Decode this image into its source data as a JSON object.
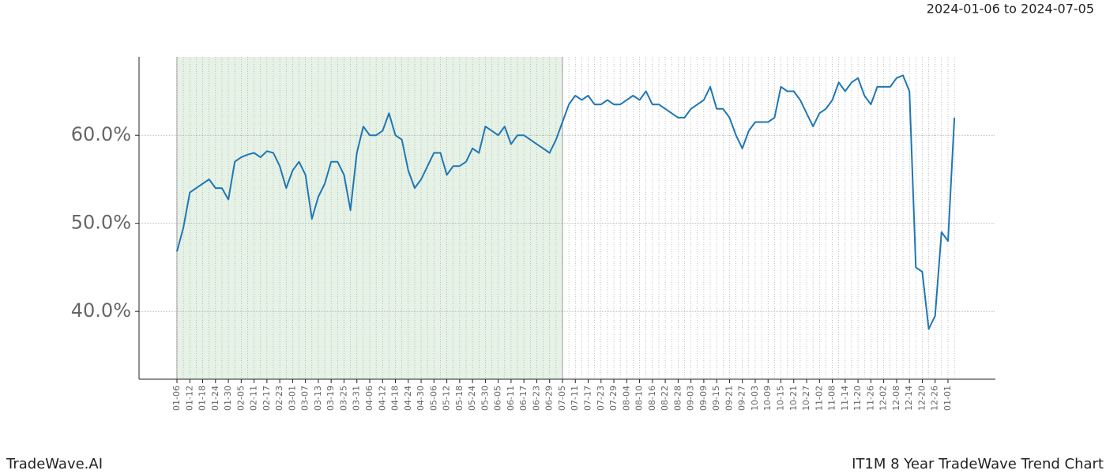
{
  "chart_data": {
    "type": "line",
    "subtitle": "2024-01-06 to 2024-07-05",
    "footer_left": "TradeWave.AI",
    "footer_right": "IT1M 8 Year TradeWave Trend Chart",
    "highlight": {
      "start": "01-06",
      "end": "07-05",
      "color": "#e6f2e6"
    },
    "x": [
      "01-06",
      null,
      "01-12",
      null,
      "01-18",
      null,
      "01-24",
      null,
      "01-30",
      null,
      "02-05",
      null,
      "02-11",
      null,
      "02-17",
      null,
      "02-23",
      null,
      "03-01",
      null,
      "03-07",
      null,
      "03-13",
      null,
      "03-19",
      null,
      "03-25",
      null,
      "03-31",
      null,
      "04-06",
      null,
      "04-12",
      null,
      "04-18",
      null,
      "04-24",
      null,
      "04-30",
      null,
      "05-06",
      null,
      "05-12",
      null,
      "05-18",
      null,
      "05-24",
      null,
      "05-30",
      null,
      "06-05",
      null,
      "06-11",
      null,
      "06-17",
      null,
      "06-23",
      null,
      "06-29",
      null,
      "07-05",
      null,
      "07-11",
      null,
      "07-17",
      null,
      "07-23",
      null,
      "07-29",
      null,
      "08-04",
      null,
      "08-10",
      null,
      "08-16",
      null,
      "08-22",
      null,
      "08-28",
      null,
      "09-03",
      null,
      "09-09",
      null,
      "09-15",
      null,
      "09-21",
      null,
      "09-27",
      null,
      "10-03",
      null,
      "10-09",
      null,
      "10-15",
      null,
      "10-21",
      null,
      "10-27",
      null,
      "11-02",
      null,
      "11-08",
      null,
      "11-14",
      null,
      "11-20",
      null,
      "11-26",
      null,
      "12-02",
      null,
      "12-08",
      null,
      "12-14",
      null,
      "12-20",
      null,
      "12-26",
      null,
      "01-01",
      null
    ],
    "series": [
      {
        "color": "#1f77b4",
        "values": [
          46.8,
          49.5,
          53.5,
          54,
          54.5,
          55,
          54,
          54,
          52.7,
          57,
          57.5,
          57.8,
          58,
          57.5,
          58.2,
          58,
          56.5,
          54,
          56,
          57,
          55.5,
          50.5,
          53,
          54.5,
          57,
          57,
          55.5,
          51.5,
          58,
          61,
          60,
          60,
          60.5,
          62.5,
          60,
          59.5,
          56,
          54,
          55,
          56.5,
          58,
          58,
          55.5,
          56.5,
          56.5,
          57,
          58.5,
          58,
          61,
          60.5,
          60,
          61,
          59,
          60,
          60,
          59.5,
          59,
          58.5,
          58,
          59.5,
          61.5,
          63.5,
          64.5,
          64,
          64.5,
          63.5,
          63.5,
          64,
          63.5,
          63.5,
          64,
          64.5,
          64,
          65,
          63.5,
          63.5,
          63,
          62.5,
          62,
          62,
          63,
          63.5,
          64,
          65.5,
          63,
          63,
          62,
          60,
          58.5,
          60.5,
          61.5,
          61.5,
          61.5,
          62,
          65.5,
          65,
          65,
          64,
          62.5,
          61,
          62.5,
          63,
          64,
          66,
          65,
          66,
          66.5,
          64.5,
          63.5,
          65.5,
          65.5,
          65.5,
          66.5,
          66.8,
          65,
          45,
          44.5,
          38,
          39.5,
          49,
          48,
          62
        ]
      }
    ],
    "ylim": [
      32.3,
      68.9
    ],
    "yticks": [
      {
        "value": 40,
        "label": "40.0%"
      },
      {
        "value": 50,
        "label": "50.0%"
      },
      {
        "value": 60,
        "label": "60.0%"
      }
    ],
    "grid": true
  }
}
